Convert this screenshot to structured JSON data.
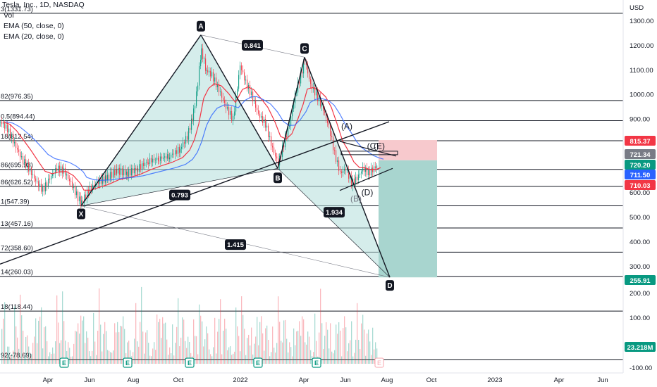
{
  "legend": {
    "symbol": "Tesla, Inc., 1D, NASDAQ",
    "vol": "Vol",
    "ema50": "EMA (50, close, 0)",
    "ema20": "EMA (20, close, 0)"
  },
  "currency": "USD",
  "fib_levels": [
    {
      "label": "3(1331.73)",
      "price": 1331.73
    },
    {
      "label": "82(976.35)",
      "price": 976.35
    },
    {
      "label": "0.5(894.44)",
      "price": 894.44
    },
    {
      "label": "18(812.54)",
      "price": 812.54
    },
    {
      "label": "86(695.93)",
      "price": 695.93
    },
    {
      "label": "86(626.52)",
      "price": 626.52
    },
    {
      "label": "1(547.39)",
      "price": 547.39
    },
    {
      "label": "13(457.16)",
      "price": 457.16
    },
    {
      "label": "72(358.60)",
      "price": 358.6
    },
    {
      "label": "14(260.03)",
      "price": 260.03
    },
    {
      "label": "18(118.44)",
      "price": 118.44
    },
    {
      "label": "92(-78.69)",
      "price": -78.69
    }
  ],
  "price_ticks": [
    "1300.00",
    "1200.00",
    "1100.00",
    "1000.00",
    "900.00",
    "600.00",
    "500.00",
    "400.00",
    "300.00",
    "200.00",
    "100.00",
    "-100.00"
  ],
  "price_tags": [
    {
      "text": "815.37",
      "bg": "#f23645",
      "fg": "#ffffff"
    },
    {
      "text": "721.34",
      "bg": "#787b86",
      "fg": "#ffffff"
    },
    {
      "text": "720.20",
      "bg": "#089981",
      "fg": "#ffffff"
    },
    {
      "text": "711.50",
      "bg": "#2962ff",
      "fg": "#ffffff"
    },
    {
      "text": "710.03",
      "bg": "#f23645",
      "fg": "#ffffff"
    },
    {
      "text": "255.91",
      "bg": "#089981",
      "fg": "#ffffff"
    },
    {
      "text": "23.218M",
      "bg": "#089981",
      "fg": "#ffffff"
    }
  ],
  "time_ticks": [
    "Apr",
    "Jun",
    "Aug",
    "Oct",
    "2022",
    "Apr",
    "Jun",
    "Aug",
    "Oct",
    "2023",
    "Apr",
    "Jun"
  ],
  "pattern_points": [
    {
      "label": "X"
    },
    {
      "label": "A"
    },
    {
      "label": "B"
    },
    {
      "label": "C"
    },
    {
      "label": "D"
    }
  ],
  "ratios": [
    "0.841",
    "0.793",
    "1.934",
    "1.415"
  ],
  "wave_labels": [
    "(A)",
    "(B)",
    "(C)",
    "(D)",
    "(E)"
  ],
  "earnings_marker": "E",
  "colors": {
    "up": "#089981",
    "down": "#f23645",
    "ema20": "#f23645",
    "ema50": "#2962ff",
    "harmonic_fill": "#b2dfdb",
    "stop_zone": "#f7c9cd",
    "target_zone": "#a8d5cf"
  },
  "chart_data": {
    "type": "line",
    "title": "Tesla, Inc., 1D, NASDAQ",
    "ylabel": "USD",
    "ylim": [
      -100,
      1350
    ],
    "series": [
      {
        "name": "EMA (20, close, 0)",
        "values": []
      },
      {
        "name": "EMA (50, close, 0)",
        "values": []
      }
    ],
    "harmonic_pattern": {
      "X": 547.39,
      "A": 1243.49,
      "B": 700.0,
      "C": 1152.87,
      "D": 255.91
    },
    "ratios": {
      "XB": 0.793,
      "AC": 0.841,
      "BD": 1.934,
      "XD": 1.415
    },
    "position": {
      "stop": 815.37,
      "entry": 710.03,
      "target": 255.91
    },
    "grid": false,
    "legend": "top-left"
  }
}
